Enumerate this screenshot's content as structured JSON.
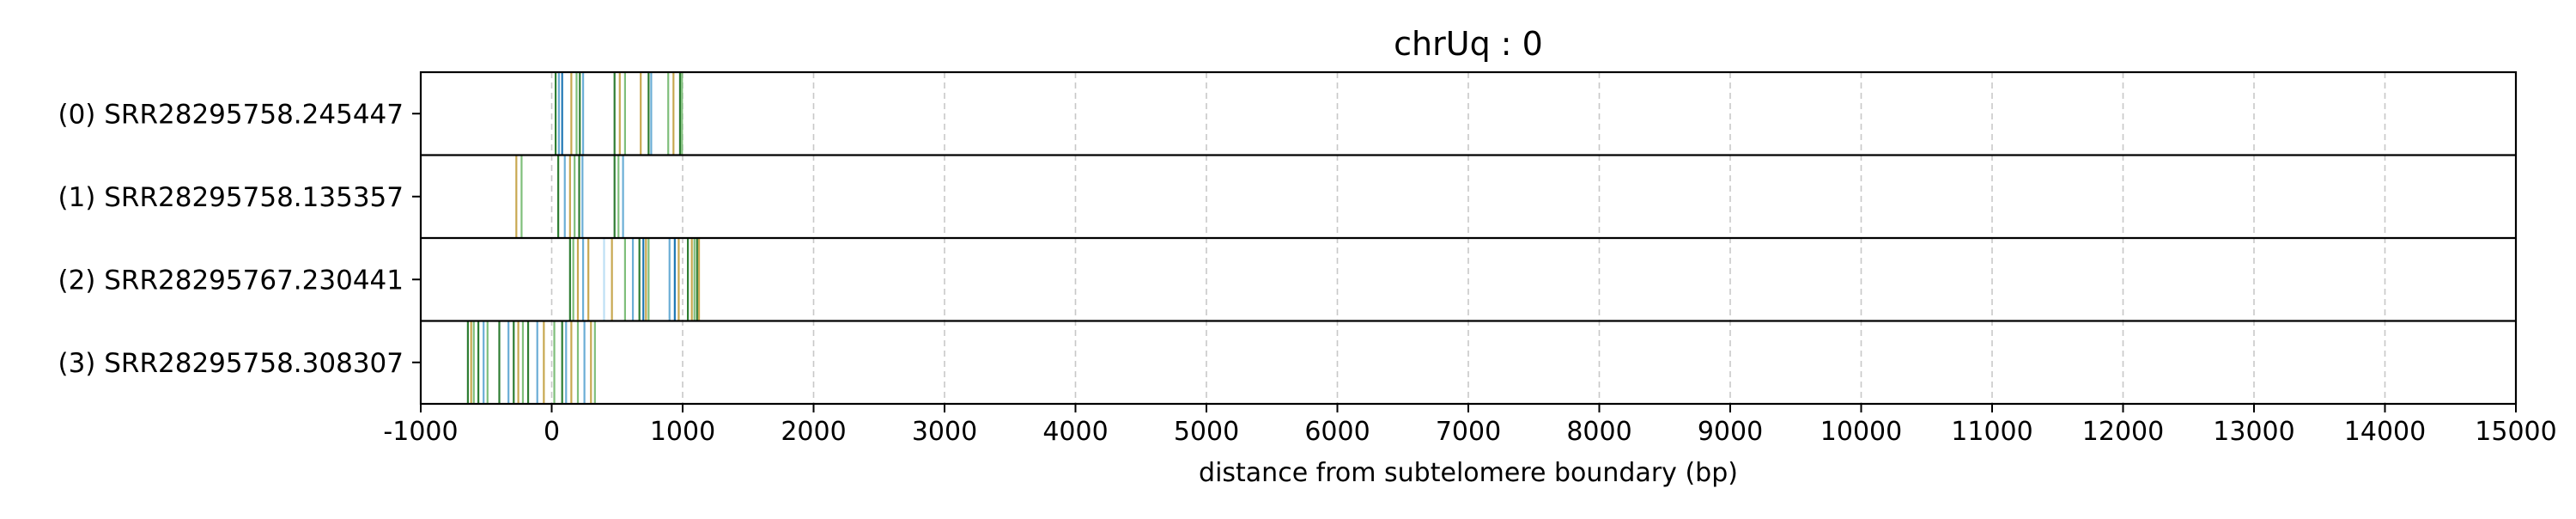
{
  "chart_data": {
    "type": "line",
    "title": "chrUq : 0",
    "xlabel": "distance from subtelomere boundary (bp)",
    "ylabel": "",
    "xlim": [
      -1000,
      15000
    ],
    "x_ticks": [
      -1000,
      0,
      1000,
      2000,
      3000,
      4000,
      5000,
      6000,
      7000,
      8000,
      9000,
      10000,
      11000,
      12000,
      13000,
      14000,
      15000
    ],
    "grid": "vertical dashed lines at x ticks",
    "rows": [
      {
        "label": "(0) SRR28295758.245447",
        "marks": [
          {
            "x": 30,
            "color": "#2e7d32"
          },
          {
            "x": 55,
            "color": "#6baed6"
          },
          {
            "x": 80,
            "color": "#1f77b4"
          },
          {
            "x": 150,
            "color": "#c8a850"
          },
          {
            "x": 190,
            "color": "#7fbf7b"
          },
          {
            "x": 215,
            "color": "#2e7d32"
          },
          {
            "x": 240,
            "color": "#6baed6"
          },
          {
            "x": 480,
            "color": "#2e7d32"
          },
          {
            "x": 520,
            "color": "#c8a850"
          },
          {
            "x": 560,
            "color": "#7fbf7b"
          },
          {
            "x": 680,
            "color": "#c8a850"
          },
          {
            "x": 740,
            "color": "#2e7d32"
          },
          {
            "x": 760,
            "color": "#6baed6"
          },
          {
            "x": 890,
            "color": "#7fbf7b"
          },
          {
            "x": 930,
            "color": "#c8a850"
          },
          {
            "x": 980,
            "color": "#2e7d32"
          },
          {
            "x": 995,
            "color": "#7fbf7b"
          }
        ]
      },
      {
        "label": "(1) SRR28295758.135357",
        "marks": [
          {
            "x": -270,
            "color": "#c8a850"
          },
          {
            "x": -230,
            "color": "#7fbf7b"
          },
          {
            "x": 50,
            "color": "#2e7d32"
          },
          {
            "x": 100,
            "color": "#6baed6"
          },
          {
            "x": 140,
            "color": "#c8a850"
          },
          {
            "x": 175,
            "color": "#7fbf7b"
          },
          {
            "x": 210,
            "color": "#2e7d32"
          },
          {
            "x": 235,
            "color": "#6baed6"
          },
          {
            "x": 480,
            "color": "#2e7d32"
          },
          {
            "x": 510,
            "color": "#7fbf7b"
          },
          {
            "x": 545,
            "color": "#6baed6"
          }
        ]
      },
      {
        "label": "(2) SRR28295767.230441",
        "marks": [
          {
            "x": 140,
            "color": "#2e7d32"
          },
          {
            "x": 165,
            "color": "#7fbf7b"
          },
          {
            "x": 200,
            "color": "#c8a850"
          },
          {
            "x": 240,
            "color": "#6baed6"
          },
          {
            "x": 280,
            "color": "#c8a850"
          },
          {
            "x": 400,
            "color": "#bde0f5"
          },
          {
            "x": 460,
            "color": "#c8a850"
          },
          {
            "x": 560,
            "color": "#7fbf7b"
          },
          {
            "x": 620,
            "color": "#6baed6"
          },
          {
            "x": 670,
            "color": "#2e7d32"
          },
          {
            "x": 700,
            "color": "#1f77b4"
          },
          {
            "x": 720,
            "color": "#c8a850"
          },
          {
            "x": 740,
            "color": "#7fbf7b"
          },
          {
            "x": 900,
            "color": "#6baed6"
          },
          {
            "x": 940,
            "color": "#1f77b4"
          },
          {
            "x": 970,
            "color": "#c8a850"
          },
          {
            "x": 1040,
            "color": "#2e7d32"
          },
          {
            "x": 1070,
            "color": "#c8a850"
          },
          {
            "x": 1090,
            "color": "#7fbf7b"
          },
          {
            "x": 1110,
            "color": "#2e7d32"
          },
          {
            "x": 1125,
            "color": "#c8a850"
          }
        ]
      },
      {
        "label": "(3) SRR28295758.308307",
        "marks": [
          {
            "x": -640,
            "color": "#2e7d32"
          },
          {
            "x": -615,
            "color": "#c8a850"
          },
          {
            "x": -595,
            "color": "#7fbf7b"
          },
          {
            "x": -560,
            "color": "#2e7d32"
          },
          {
            "x": -520,
            "color": "#6baed6"
          },
          {
            "x": -490,
            "color": "#7fbf7b"
          },
          {
            "x": -400,
            "color": "#2e7d32"
          },
          {
            "x": -330,
            "color": "#6baed6"
          },
          {
            "x": -290,
            "color": "#2e7d32"
          },
          {
            "x": -255,
            "color": "#c8a850"
          },
          {
            "x": -220,
            "color": "#7fbf7b"
          },
          {
            "x": -180,
            "color": "#2e7d32"
          },
          {
            "x": -110,
            "color": "#6baed6"
          },
          {
            "x": -60,
            "color": "#c8a850"
          },
          {
            "x": 20,
            "color": "#7fbf7b"
          },
          {
            "x": 80,
            "color": "#2e7d32"
          },
          {
            "x": 110,
            "color": "#6baed6"
          },
          {
            "x": 150,
            "color": "#c8a850"
          },
          {
            "x": 200,
            "color": "#7fbf7b"
          },
          {
            "x": 250,
            "color": "#6baed6"
          },
          {
            "x": 300,
            "color": "#c8a850"
          },
          {
            "x": 330,
            "color": "#7fbf7b"
          }
        ]
      }
    ]
  }
}
